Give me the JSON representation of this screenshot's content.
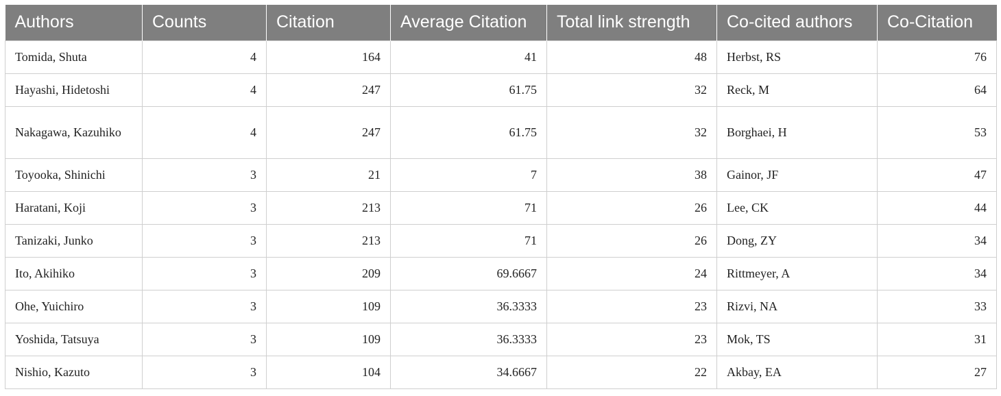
{
  "table": {
    "columns": [
      "Authors",
      "Counts",
      "Citation",
      "Average Citation",
      "Total link strength",
      "Co-cited authors",
      "Co-Citation"
    ],
    "rows": [
      [
        "Tomida, Shuta",
        "4",
        "164",
        "41",
        "48",
        "Herbst, RS",
        "76"
      ],
      [
        "Hayashi, Hidetoshi",
        "4",
        "247",
        "61.75",
        "32",
        "Reck, M",
        "64"
      ],
      [
        "Nakagawa, Kazuhiko",
        "4",
        "247",
        "61.75",
        "32",
        "Borghaei, H",
        "53"
      ],
      [
        "Toyooka, Shinichi",
        "3",
        "21",
        "7",
        "38",
        "Gainor, JF",
        "47"
      ],
      [
        "Haratani, Koji",
        "3",
        "213",
        "71",
        "26",
        "Lee, CK",
        "44"
      ],
      [
        "Tanizaki, Junko",
        "3",
        "213",
        "71",
        "26",
        "Dong, ZY",
        "34"
      ],
      [
        "Ito, Akihiko",
        "3",
        "209",
        "69.6667",
        "24",
        "Rittmeyer, A",
        "34"
      ],
      [
        "Ohe, Yuichiro",
        "3",
        "109",
        "36.3333",
        "23",
        "Rizvi, NA",
        "33"
      ],
      [
        "Yoshida, Tatsuya",
        "3",
        "109",
        "36.3333",
        "23",
        "Mok, TS",
        "31"
      ],
      [
        "Nishio, Kazuto",
        "3",
        "104",
        "34.6667",
        "22",
        "Akbay, EA",
        "27"
      ]
    ]
  }
}
